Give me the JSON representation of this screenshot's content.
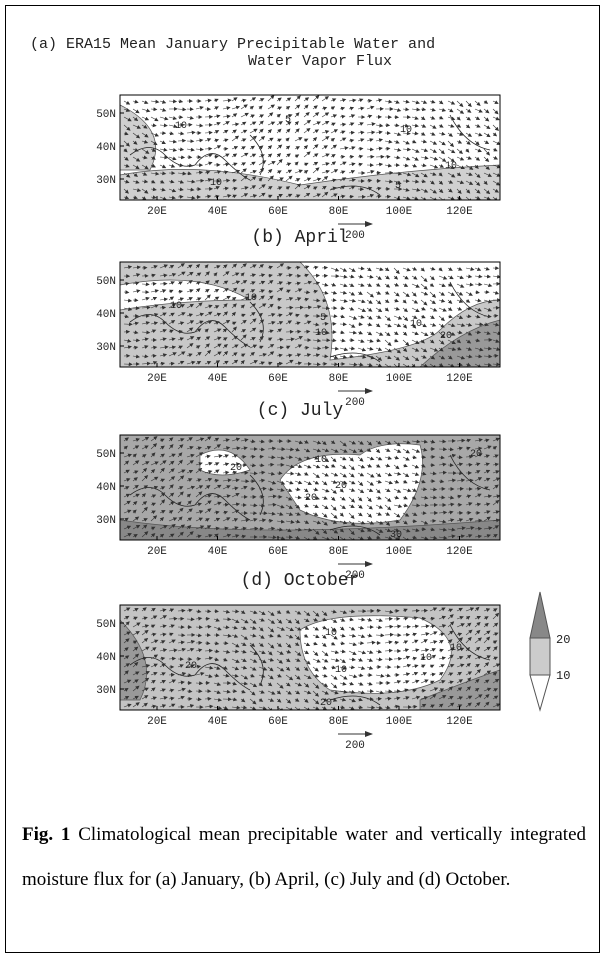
{
  "panels": [
    {
      "title": [
        "(a) ERA15 Mean January Precipitable Water and",
        "Water Vapor Flux"
      ],
      "lat_labels": [
        "50N",
        "40N",
        "30N"
      ],
      "lon_labels": [
        "20E",
        "40E",
        "60E",
        "80E",
        "100E",
        "120E"
      ],
      "contour_labels": [
        "10",
        "5",
        "10",
        "10",
        "5",
        "10"
      ],
      "vector_scale": "200"
    },
    {
      "title": [
        "(b) April"
      ],
      "lat_labels": [
        "50N",
        "40N",
        "30N"
      ],
      "lon_labels": [
        "20E",
        "40E",
        "60E",
        "80E",
        "100E",
        "120E"
      ],
      "contour_labels": [
        "10",
        "10",
        "5",
        "10",
        "10",
        "20"
      ],
      "vector_scale": "200"
    },
    {
      "title": [
        "(c) July"
      ],
      "lat_labels": [
        "50N",
        "40N",
        "30N"
      ],
      "lon_labels": [
        "20E",
        "40E",
        "60E",
        "80E",
        "100E",
        "120E"
      ],
      "contour_labels": [
        "20",
        "10",
        "20",
        "20",
        "20",
        "30"
      ],
      "vector_scale": "200"
    },
    {
      "title": [
        "(d) October"
      ],
      "lat_labels": [
        "50N",
        "40N",
        "30N"
      ],
      "lon_labels": [
        "20E",
        "40E",
        "60E",
        "80E",
        "100E",
        "120E"
      ],
      "contour_labels": [
        "10",
        "20",
        "10",
        "10",
        "20",
        "10"
      ],
      "vector_scale": "200"
    }
  ],
  "legend": {
    "labels": [
      "20",
      "10"
    ]
  },
  "caption": {
    "label": "Fig. 1",
    "text": "Climatological mean precipitable water and vertically integrated moisture flux for (a) January, (b) April, (c) July and (d) October."
  }
}
